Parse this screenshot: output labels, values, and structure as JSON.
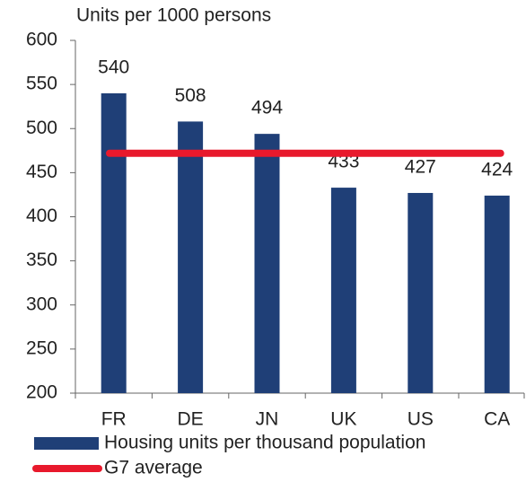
{
  "chart_data": {
    "type": "bar",
    "title": "Units per 1000 persons",
    "categories": [
      "FR",
      "DE",
      "JN",
      "UK",
      "US",
      "CA"
    ],
    "series": [
      {
        "name": "Housing units per thousand population",
        "color": "#1f3f77",
        "values": [
          540,
          508,
          494,
          433,
          427,
          424
        ]
      }
    ],
    "lines": [
      {
        "name": "G7 average",
        "value": 472,
        "color": "#e8192c"
      }
    ],
    "ylim": [
      200,
      600
    ],
    "yticks": [
      200,
      250,
      300,
      350,
      400,
      450,
      500,
      550,
      600
    ],
    "grid": false,
    "data_labels": true
  }
}
